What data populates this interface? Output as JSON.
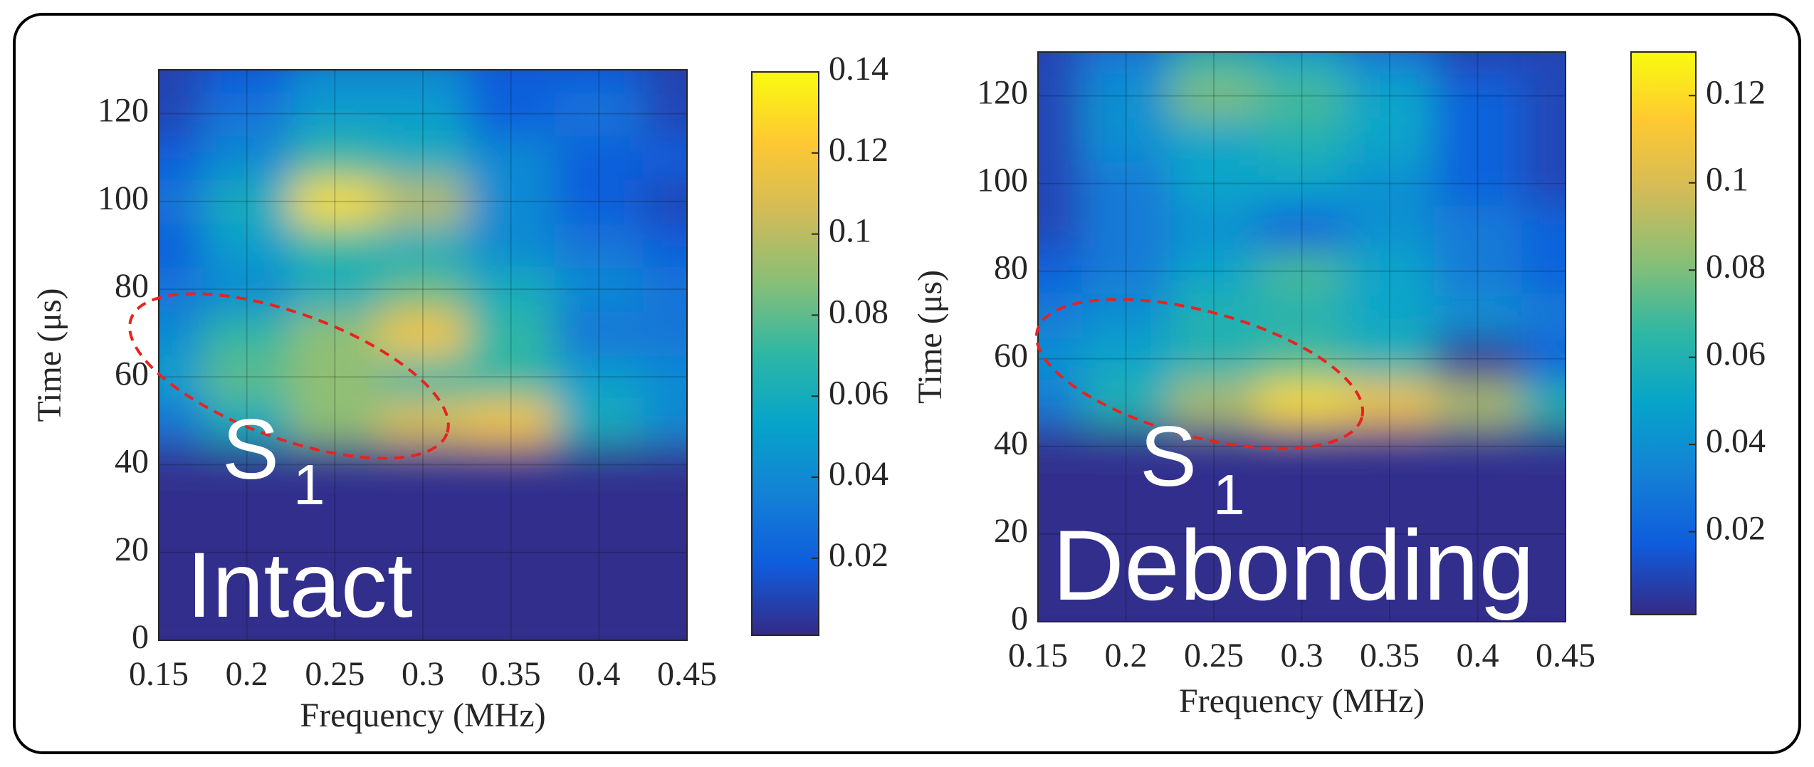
{
  "chart_data": [
    {
      "type": "heatmap",
      "xlabel": "Frequency (MHz)",
      "ylabel": "Time (μs)",
      "x": [
        0.15,
        0.2,
        0.25,
        0.3,
        0.35,
        0.4,
        0.45
      ],
      "y": [
        0,
        10,
        20,
        30,
        40,
        50,
        60,
        70,
        80,
        90,
        100,
        110,
        120,
        130
      ],
      "z": [
        [
          0.002,
          0.002,
          0.002,
          0.002,
          0.002,
          0.002,
          0.002
        ],
        [
          0.002,
          0.002,
          0.002,
          0.002,
          0.002,
          0.002,
          0.002
        ],
        [
          0.002,
          0.002,
          0.002,
          0.002,
          0.002,
          0.002,
          0.002
        ],
        [
          0.002,
          0.002,
          0.002,
          0.002,
          0.002,
          0.002,
          0.002
        ],
        [
          0.003,
          0.003,
          0.003,
          0.003,
          0.003,
          0.003,
          0.003
        ],
        [
          0.03,
          0.06,
          0.09,
          0.11,
          0.12,
          0.06,
          0.04
        ],
        [
          0.05,
          0.08,
          0.09,
          0.07,
          0.07,
          0.05,
          0.04
        ],
        [
          0.04,
          0.07,
          0.09,
          0.12,
          0.07,
          0.03,
          0.03
        ],
        [
          0.03,
          0.04,
          0.06,
          0.08,
          0.06,
          0.04,
          0.03
        ],
        [
          0.02,
          0.05,
          0.07,
          0.06,
          0.04,
          0.03,
          0.02
        ],
        [
          0.03,
          0.06,
          0.13,
          0.1,
          0.04,
          0.02,
          0.01
        ],
        [
          0.02,
          0.04,
          0.07,
          0.06,
          0.04,
          0.02,
          0.02
        ],
        [
          0.01,
          0.03,
          0.05,
          0.05,
          0.02,
          0.03,
          0.01
        ],
        [
          0.01,
          0.02,
          0.04,
          0.04,
          0.02,
          0.02,
          0.01
        ]
      ],
      "xlim": [
        0.15,
        0.45
      ],
      "ylim": [
        0,
        130
      ],
      "xticks": [
        0.15,
        0.2,
        0.25,
        0.3,
        0.35,
        0.4,
        0.45
      ],
      "yticks": [
        0,
        20,
        40,
        60,
        80,
        100,
        120
      ],
      "clim": [
        0.001,
        0.14
      ],
      "cticks": [
        0.02,
        0.04,
        0.06,
        0.08,
        0.1,
        0.12,
        0.14
      ],
      "grid": true,
      "colormap": [
        "#352a87",
        "#0f5cdd",
        "#1481d6",
        "#06a4ca",
        "#2eb7a4",
        "#87bf77",
        "#d1bb59",
        "#fec832",
        "#f9fb0e"
      ],
      "annotations": [
        {
          "text": "S",
          "subscript": "1"
        },
        {
          "text": "Intact"
        }
      ]
    },
    {
      "type": "heatmap",
      "xlabel": "Frequency (MHz)",
      "ylabel": "Time (μs)",
      "x": [
        0.15,
        0.2,
        0.25,
        0.3,
        0.35,
        0.4,
        0.45
      ],
      "y": [
        0,
        10,
        20,
        30,
        40,
        50,
        60,
        70,
        80,
        90,
        100,
        110,
        120,
        130
      ],
      "z": [
        [
          0.002,
          0.002,
          0.002,
          0.002,
          0.002,
          0.002,
          0.002
        ],
        [
          0.002,
          0.002,
          0.002,
          0.002,
          0.002,
          0.002,
          0.002
        ],
        [
          0.002,
          0.002,
          0.002,
          0.002,
          0.002,
          0.002,
          0.002
        ],
        [
          0.002,
          0.002,
          0.002,
          0.002,
          0.002,
          0.002,
          0.002
        ],
        [
          0.003,
          0.003,
          0.003,
          0.003,
          0.003,
          0.003,
          0.003
        ],
        [
          0.03,
          0.06,
          0.09,
          0.12,
          0.11,
          0.09,
          0.06
        ],
        [
          0.04,
          0.05,
          0.06,
          0.07,
          0.06,
          0.004,
          0.02
        ],
        [
          0.03,
          0.04,
          0.06,
          0.06,
          0.05,
          0.04,
          0.03
        ],
        [
          0.02,
          0.03,
          0.05,
          0.07,
          0.05,
          0.03,
          0.02
        ],
        [
          0.01,
          0.03,
          0.04,
          0.02,
          0.04,
          0.03,
          0.02
        ],
        [
          0.01,
          0.03,
          0.05,
          0.05,
          0.04,
          0.02,
          0.01
        ],
        [
          0.01,
          0.04,
          0.05,
          0.06,
          0.05,
          0.02,
          0.01
        ],
        [
          0.01,
          0.04,
          0.08,
          0.07,
          0.05,
          0.02,
          0.01
        ],
        [
          0.01,
          0.03,
          0.06,
          0.05,
          0.03,
          0.01,
          0.01
        ]
      ],
      "xlim": [
        0.15,
        0.45
      ],
      "ylim": [
        0,
        130
      ],
      "xticks": [
        0.15,
        0.2,
        0.25,
        0.3,
        0.35,
        0.4,
        0.45
      ],
      "yticks": [
        0,
        20,
        40,
        60,
        80,
        100,
        120
      ],
      "clim": [
        0.001,
        0.13
      ],
      "cticks": [
        0.02,
        0.04,
        0.06,
        0.08,
        0.1,
        0.12
      ],
      "grid": true,
      "colormap": [
        "#352a87",
        "#0f5cdd",
        "#1481d6",
        "#06a4ca",
        "#2eb7a4",
        "#87bf77",
        "#d1bb59",
        "#fec832",
        "#f9fb0e"
      ],
      "annotations": [
        {
          "text": "S",
          "subscript": "1"
        },
        {
          "text": "Debonding"
        }
      ]
    }
  ]
}
